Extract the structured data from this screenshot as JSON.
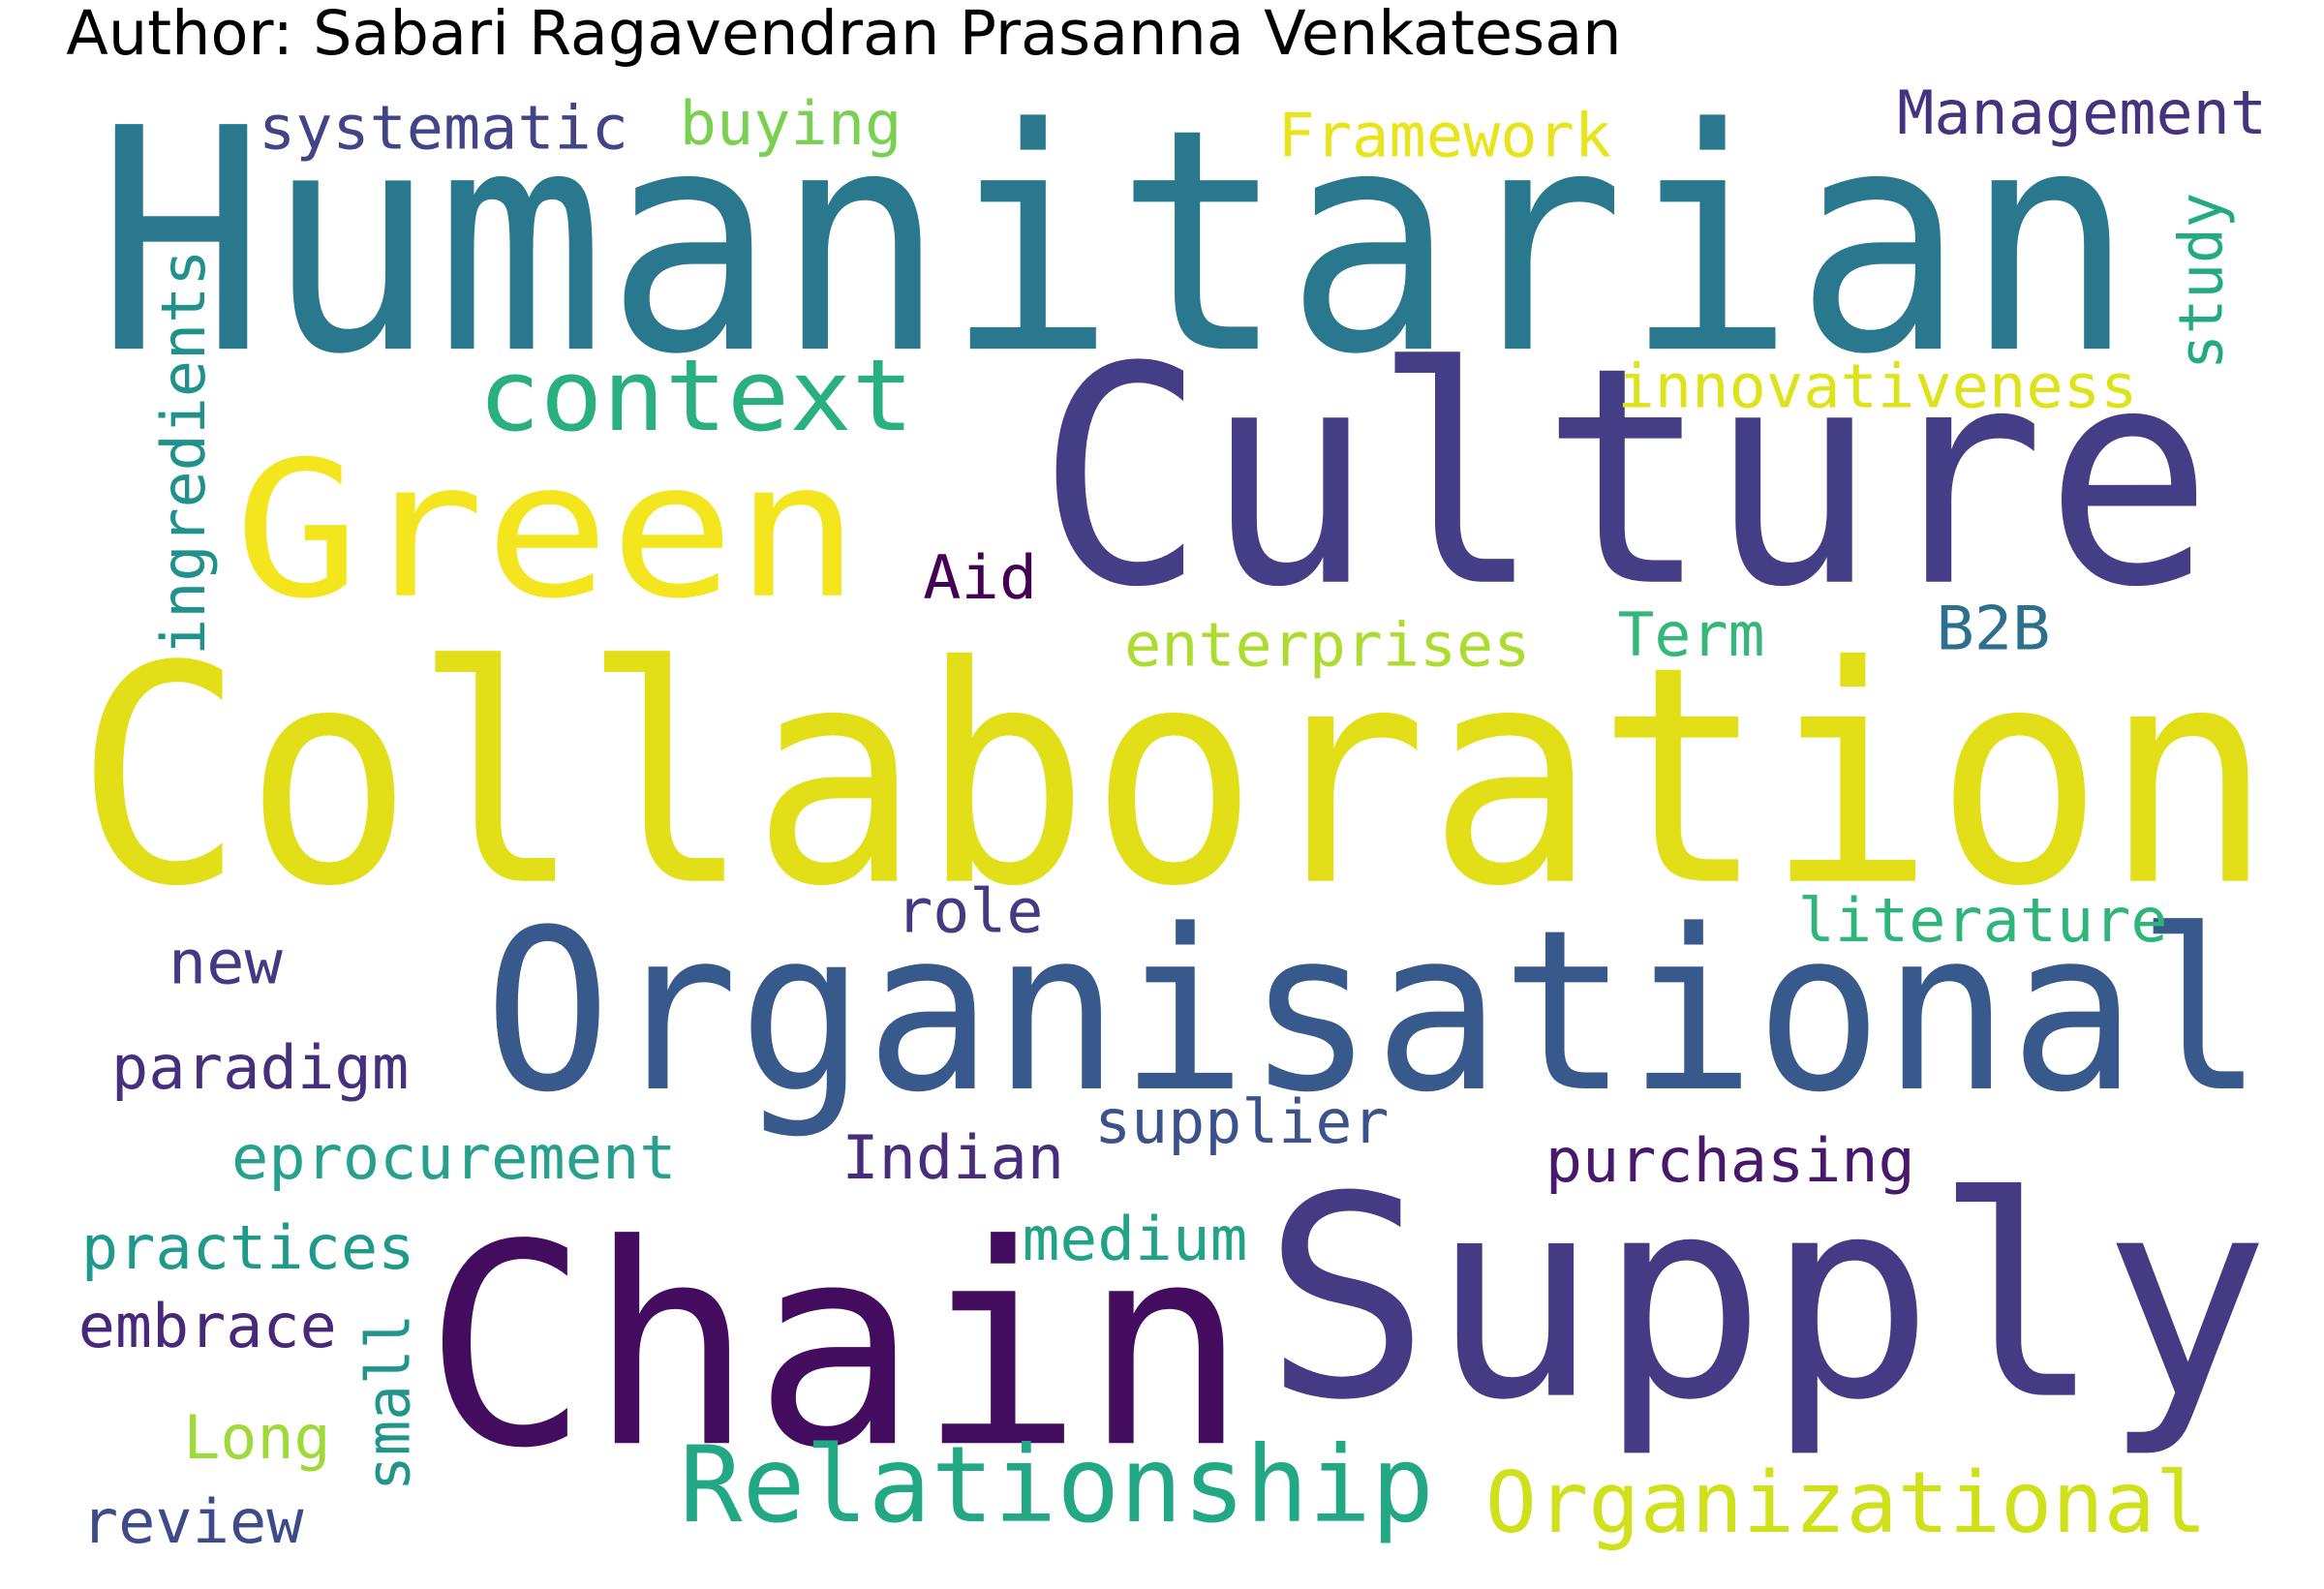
{
  "author": "Author: Sabari Ragavendran Prasanna Venkatesan",
  "words": [
    {
      "text": "Humanitarian",
      "color": "#2a788e"
    },
    {
      "text": "Collaboration",
      "color": "#e2df19"
    },
    {
      "text": "Culture",
      "color": "#433e85"
    },
    {
      "text": "Organisational",
      "color": "#38598c"
    },
    {
      "text": "Supply",
      "color": "#453a84"
    },
    {
      "text": "Chain",
      "color": "#440c5e"
    },
    {
      "text": "Green",
      "color": "#f4e61e"
    },
    {
      "text": "context",
      "color": "#2ab07f"
    },
    {
      "text": "Relationship",
      "color": "#22a884"
    },
    {
      "text": "Organizational",
      "color": "#d0e11c"
    },
    {
      "text": "systematic",
      "color": "#414487"
    },
    {
      "text": "buying",
      "color": "#7ad151"
    },
    {
      "text": "Framework",
      "color": "#e8e419"
    },
    {
      "text": "Management",
      "color": "#46337e"
    },
    {
      "text": "study",
      "color": "#24aa83"
    },
    {
      "text": "innovativeness",
      "color": "#dde318"
    },
    {
      "text": "ingredients",
      "color": "#21918c"
    },
    {
      "text": "Aid",
      "color": "#440154"
    },
    {
      "text": "enterprises",
      "color": "#addc30"
    },
    {
      "text": "Term",
      "color": "#35b779"
    },
    {
      "text": "B2B",
      "color": "#2d708e"
    },
    {
      "text": "role",
      "color": "#443983"
    },
    {
      "text": "literature",
      "color": "#2fb47c"
    },
    {
      "text": "new",
      "color": "#443a83"
    },
    {
      "text": "paradigm",
      "color": "#46307e"
    },
    {
      "text": "supplier",
      "color": "#3b528b"
    },
    {
      "text": "eprocurement",
      "color": "#25a18e"
    },
    {
      "text": "Indian",
      "color": "#472d7b"
    },
    {
      "text": "purchasing",
      "color": "#48186a"
    },
    {
      "text": "medium",
      "color": "#20a386"
    },
    {
      "text": "practices",
      "color": "#1f9a8a"
    },
    {
      "text": "embrace",
      "color": "#482878"
    },
    {
      "text": "small",
      "color": "#1f958b"
    },
    {
      "text": "Long",
      "color": "#9fda3a"
    },
    {
      "text": "review",
      "color": "#3e4a89"
    }
  ]
}
